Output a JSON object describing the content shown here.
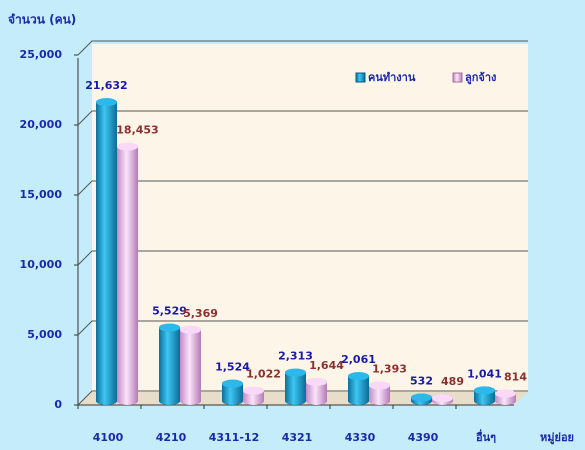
{
  "chart_data": {
    "type": "bar",
    "y_axis_label": "จำนวน (คน)",
    "x_axis_label": "หมู่ย่อย",
    "categories": [
      "4100",
      "4210",
      "4311-12",
      "4321",
      "4330",
      "4390",
      "อื่นๆ"
    ],
    "series": [
      {
        "name": "คนทำงาน",
        "color": "#1fa8dc",
        "label_color": "#1a1aa8",
        "values": [
          21632,
          5529,
          1524,
          2313,
          2061,
          532,
          1041
        ],
        "value_labels": [
          "21,632",
          "5,529",
          "1,524",
          "2,313",
          "2,061",
          "532",
          "1,041"
        ]
      },
      {
        "name": "ลูกจ้าง",
        "color": "#f2c4f0",
        "label_color": "#8b3030",
        "values": [
          18453,
          5369,
          1022,
          1644,
          1393,
          489,
          814
        ],
        "value_labels": [
          "18,453",
          "5,369",
          "1,022",
          "1,644",
          "1,393",
          "489",
          "814"
        ]
      }
    ],
    "ylim": [
      0,
      25000
    ],
    "yticks": [
      0,
      {
        "value": 5000,
        "label": "5,000"
      },
      {
        "value": 10000,
        "label": "10,000"
      },
      {
        "value": 15000,
        "label": "15,000"
      },
      {
        "value": 20000,
        "label": "20,000"
      },
      {
        "value": 25000,
        "label": "25,000"
      }
    ],
    "grid": true,
    "legend": "upper right"
  }
}
